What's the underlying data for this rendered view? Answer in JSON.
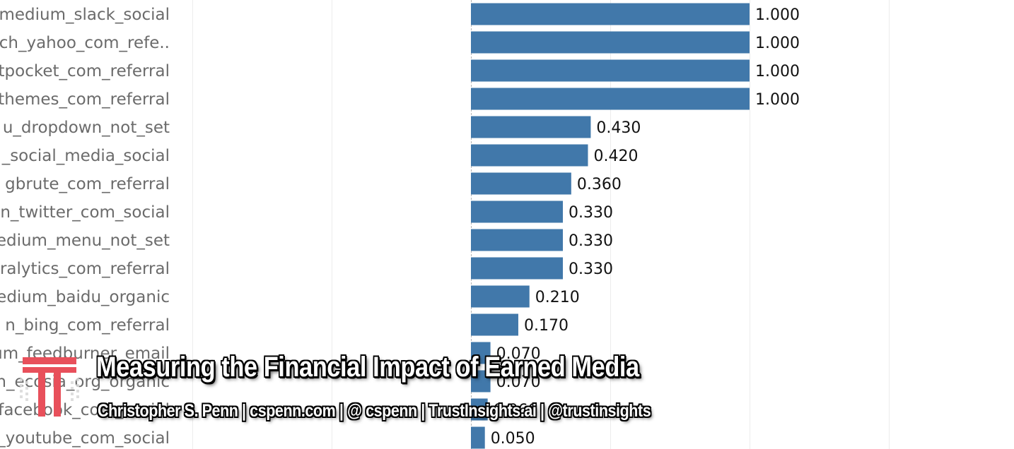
{
  "chart_data": {
    "type": "bar",
    "orientation": "horizontal",
    "categories": [
      "medium_slack_social",
      "ch_yahoo_com_refe..",
      "tpocket_com_referral",
      "themes_com_referral",
      "u_dropdown_not_set",
      "_social_media_social",
      "gbrute_com_referral",
      "n_twitter_com_social",
      "edium_menu_not_set",
      "ralytics_com_referral",
      "edium_baidu_organic",
      "n_bing_com_referral",
      "um_feedburner_email",
      "n_ecosia_org_organic",
      "facebook_com_social",
      "_youtube_com_social"
    ],
    "values": [
      1.0,
      1.0,
      1.0,
      1.0,
      0.43,
      0.42,
      0.36,
      0.33,
      0.33,
      0.33,
      0.21,
      0.17,
      0.07,
      0.07,
      0.06,
      0.05
    ],
    "value_labels": [
      "1.000",
      "1.000",
      "1.000",
      "1.000",
      "0.430",
      "0.420",
      "0.360",
      "0.330",
      "0.330",
      "0.330",
      "0.210",
      "0.170",
      "0.070",
      "0.070",
      "0.060",
      "0.050"
    ],
    "xlim": [
      -1.05,
      2.0
    ],
    "grid": true,
    "bar_color": "#4178aa"
  },
  "overlay": {
    "title": "Measuring the Financial Impact of Earned Media",
    "subtitle": "Christopher S. Penn | cspenn.com | @ cspenn | TrustInsights.ai | @trustinsights",
    "logo_color": "#e8505b"
  }
}
